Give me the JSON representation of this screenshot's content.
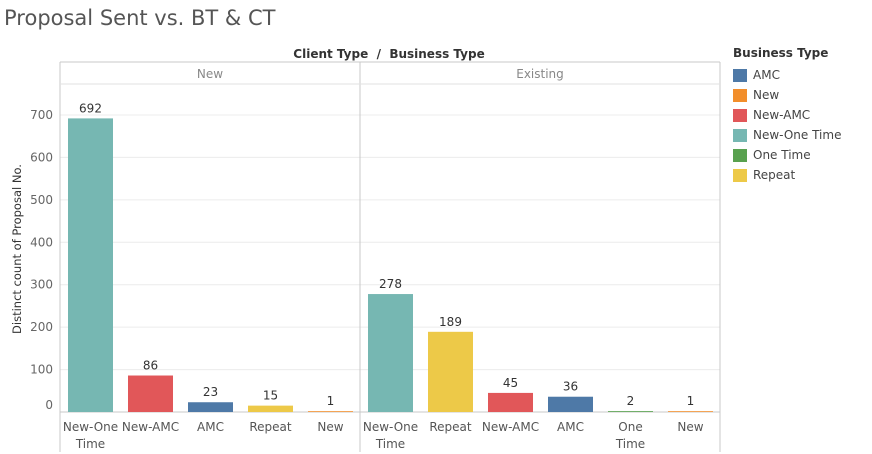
{
  "chart_data": {
    "type": "bar",
    "title": "Proposal Sent vs. BT & CT",
    "column_header": "Client Type  /  Business Type",
    "ylabel": "Distinct count of Proposal No.",
    "ylim": [
      0,
      760
    ],
    "yticks": [
      0,
      100,
      200,
      300,
      400,
      500,
      600,
      700
    ],
    "grid": true,
    "legend": {
      "title": "Business Type",
      "placement": "right",
      "items": [
        {
          "label": "AMC",
          "color": "#4e79a7"
        },
        {
          "label": "New",
          "color": "#f28e2b"
        },
        {
          "label": "New-AMC",
          "color": "#e15759"
        },
        {
          "label": "New-One Time",
          "color": "#76b7b2"
        },
        {
          "label": "One Time",
          "color": "#59a14f"
        },
        {
          "label": "Repeat",
          "color": "#edc948"
        }
      ]
    },
    "panels": [
      {
        "name": "New",
        "bars": [
          {
            "category": "New-One Time",
            "value": 692
          },
          {
            "category": "New-AMC",
            "value": 86
          },
          {
            "category": "AMC",
            "value": 23
          },
          {
            "category": "Repeat",
            "value": 15
          },
          {
            "category": "New",
            "value": 1
          }
        ]
      },
      {
        "name": "Existing",
        "bars": [
          {
            "category": "New-One Time",
            "value": 278
          },
          {
            "category": "Repeat",
            "value": 189
          },
          {
            "category": "New-AMC",
            "value": 45
          },
          {
            "category": "AMC",
            "value": 36
          },
          {
            "category": "One Time",
            "value": 2
          },
          {
            "category": "New",
            "value": 1
          }
        ]
      }
    ]
  }
}
